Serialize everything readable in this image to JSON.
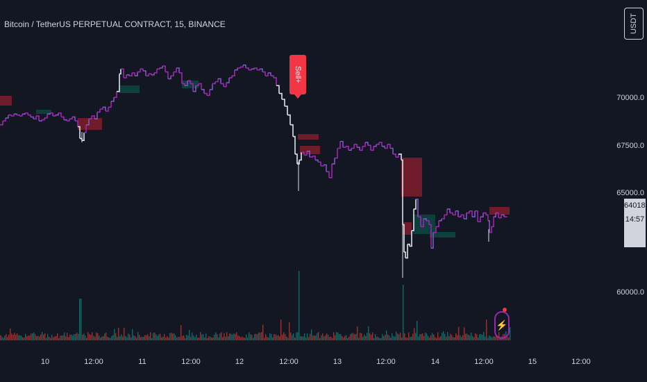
{
  "chart_title": "Bitcoin / TetherUS PERPETUAL CONTRACT, 15, BINANCE",
  "currency_button": "USDT",
  "sell_label": "Sell+",
  "last_price": "64018.3",
  "countdown": "14:57",
  "y_ticks": [
    "70000.0",
    "67500.0",
    "65000.0",
    "60000.0"
  ],
  "x_ticks": [
    "10",
    "12:00",
    "11",
    "12:00",
    "12",
    "12:00",
    "13",
    "12:00",
    "14",
    "12:00",
    "15",
    "12:00"
  ],
  "colors": {
    "background": "#131722",
    "price_line_a": "#9c27b0",
    "price_line_b": "#7e57c2",
    "price_white": "#e0e3eb",
    "bear_zone": "#7f1d2b",
    "bull_zone": "#0d4a45",
    "vol_up": "#26a69a",
    "vol_down": "#ef5350",
    "sell": "#f23645"
  },
  "chart_data": {
    "type": "line",
    "x_labels": [
      "10",
      "12:00",
      "11",
      "12:00",
      "12",
      "12:00",
      "13",
      "12:00",
      "14",
      "12:00",
      "15",
      "12:00"
    ],
    "ylim": [
      58000,
      73500
    ],
    "series": [
      {
        "values": [
          [
            0,
            68700
          ],
          [
            4,
            68900
          ],
          [
            8,
            69050
          ],
          [
            12,
            69200
          ],
          [
            16,
            69150
          ],
          [
            20,
            69250
          ],
          [
            24,
            69200
          ],
          [
            28,
            69150
          ],
          [
            32,
            69250
          ],
          [
            36,
            69300
          ],
          [
            40,
            69200
          ],
          [
            44,
            69100
          ],
          [
            48,
            69000
          ],
          [
            52,
            69150
          ],
          [
            56,
            68900
          ],
          [
            60,
            68950
          ],
          [
            64,
            69050
          ],
          [
            68,
            69250
          ],
          [
            72,
            69300
          ],
          [
            76,
            69150
          ],
          [
            80,
            69200
          ],
          [
            84,
            69300
          ],
          [
            88,
            69100
          ],
          [
            92,
            68950
          ],
          [
            96,
            68900
          ],
          [
            100,
            69000
          ],
          [
            104,
            69100
          ],
          [
            108,
            68900
          ],
          [
            112,
            68600
          ],
          [
            115,
            68000
          ],
          [
            118,
            67900
          ],
          [
            121,
            68300
          ],
          [
            124,
            68700
          ],
          [
            128,
            69000
          ],
          [
            132,
            69150
          ],
          [
            136,
            69000
          ],
          [
            140,
            69350
          ],
          [
            144,
            69500
          ],
          [
            148,
            69600
          ],
          [
            152,
            69400
          ],
          [
            156,
            69600
          ],
          [
            160,
            69900
          ],
          [
            164,
            70100
          ],
          [
            168,
            70400
          ],
          [
            172,
            71300
          ],
          [
            174,
            71550
          ],
          [
            178,
            71100
          ],
          [
            182,
            71250
          ],
          [
            186,
            71200
          ],
          [
            190,
            71350
          ],
          [
            194,
            71200
          ],
          [
            198,
            71400
          ],
          [
            202,
            71550
          ],
          [
            206,
            71450
          ],
          [
            210,
            71200
          ],
          [
            214,
            71300
          ],
          [
            218,
            71250
          ],
          [
            222,
            71350
          ],
          [
            226,
            71550
          ],
          [
            230,
            71600
          ],
          [
            234,
            71700
          ],
          [
            238,
            71400
          ],
          [
            242,
            71050
          ],
          [
            246,
            71200
          ],
          [
            250,
            71400
          ],
          [
            254,
            71600
          ],
          [
            258,
            71350
          ],
          [
            262,
            70800
          ],
          [
            266,
            70700
          ],
          [
            270,
            70950
          ],
          [
            274,
            70800
          ],
          [
            278,
            70400
          ],
          [
            282,
            70700
          ],
          [
            286,
            70800
          ],
          [
            290,
            70500
          ],
          [
            294,
            70300
          ],
          [
            298,
            70200
          ],
          [
            302,
            70500
          ],
          [
            306,
            70800
          ],
          [
            310,
            70900
          ],
          [
            314,
            71050
          ],
          [
            318,
            70800
          ],
          [
            322,
            70650
          ],
          [
            326,
            70850
          ],
          [
            330,
            71100
          ],
          [
            334,
            71200
          ],
          [
            338,
            71500
          ],
          [
            342,
            71600
          ],
          [
            346,
            71650
          ],
          [
            350,
            71750
          ],
          [
            354,
            71600
          ],
          [
            358,
            71500
          ],
          [
            362,
            71550
          ],
          [
            366,
            71600
          ],
          [
            370,
            71500
          ],
          [
            374,
            71550
          ],
          [
            378,
            71400
          ],
          [
            382,
            71200
          ],
          [
            386,
            71350
          ],
          [
            390,
            71200
          ],
          [
            394,
            71100
          ],
          [
            398,
            70700
          ],
          [
            402,
            70300
          ],
          [
            406,
            70000
          ],
          [
            410,
            69650
          ],
          [
            414,
            69200
          ],
          [
            418,
            68700
          ],
          [
            422,
            68100
          ],
          [
            425,
            67200
          ],
          [
            428,
            66700
          ],
          [
            431,
            66900
          ],
          [
            434,
            67300
          ],
          [
            438,
            67150
          ],
          [
            442,
            67350
          ],
          [
            446,
            67050
          ],
          [
            450,
            67100
          ],
          [
            454,
            66900
          ],
          [
            458,
            66800
          ],
          [
            462,
            66600
          ],
          [
            466,
            66650
          ],
          [
            470,
            66300
          ],
          [
            474,
            66000
          ],
          [
            478,
            66700
          ],
          [
            482,
            67000
          ],
          [
            486,
            67500
          ],
          [
            490,
            67850
          ],
          [
            494,
            67550
          ],
          [
            498,
            67600
          ],
          [
            502,
            67400
          ],
          [
            506,
            67500
          ],
          [
            510,
            67700
          ],
          [
            514,
            67550
          ],
          [
            518,
            67400
          ],
          [
            522,
            67600
          ],
          [
            526,
            67800
          ],
          [
            530,
            67650
          ],
          [
            534,
            67400
          ],
          [
            538,
            67600
          ],
          [
            542,
            67700
          ],
          [
            546,
            67800
          ],
          [
            550,
            67600
          ],
          [
            554,
            67500
          ],
          [
            558,
            67700
          ],
          [
            562,
            67500
          ],
          [
            566,
            67200
          ],
          [
            570,
            67050
          ],
          [
            574,
            67200
          ],
          [
            578,
            66900
          ],
          [
            580,
            63600
          ],
          [
            582,
            62200
          ],
          [
            584,
            61900
          ],
          [
            587,
            62600
          ],
          [
            590,
            62500
          ],
          [
            593,
            63300
          ],
          [
            596,
            64400
          ],
          [
            599,
            64900
          ],
          [
            602,
            64000
          ],
          [
            606,
            63500
          ],
          [
            610,
            63900
          ],
          [
            614,
            63800
          ],
          [
            618,
            63600
          ],
          [
            621,
            62400
          ],
          [
            624,
            63200
          ],
          [
            628,
            63500
          ],
          [
            632,
            63800
          ],
          [
            636,
            63900
          ],
          [
            640,
            64100
          ],
          [
            644,
            64400
          ],
          [
            648,
            64200
          ],
          [
            652,
            64100
          ],
          [
            656,
            64300
          ],
          [
            660,
            64000
          ],
          [
            664,
            64100
          ],
          [
            668,
            63900
          ],
          [
            672,
            64200
          ],
          [
            676,
            64300
          ],
          [
            680,
            64000
          ],
          [
            684,
            64300
          ],
          [
            688,
            63750
          ],
          [
            692,
            64000
          ],
          [
            696,
            64200
          ],
          [
            700,
            64100
          ],
          [
            703,
            63800
          ],
          [
            705,
            63200
          ],
          [
            708,
            63500
          ],
          [
            711,
            64000
          ],
          [
            714,
            64200
          ],
          [
            718,
            63950
          ],
          [
            722,
            64100
          ],
          [
            726,
            64000
          ],
          [
            730,
            64018
          ]
        ]
      }
    ]
  }
}
